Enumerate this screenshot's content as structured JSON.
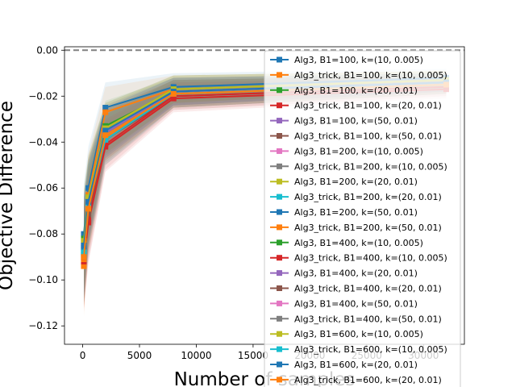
{
  "chart_data": {
    "type": "line",
    "title": "",
    "xlabel": "Number of samples",
    "ylabel": "Objective Difference",
    "xlim": [
      -1600,
      33600
    ],
    "ylim": [
      -0.128,
      0.0015
    ],
    "x_ticks": [
      0,
      5000,
      10000,
      15000,
      20000,
      25000,
      30000
    ],
    "x_tick_labels": [
      "0",
      "5000",
      "10000",
      "15000",
      "20000",
      "25000",
      "30000"
    ],
    "y_ticks": [
      0.0,
      -0.02,
      -0.04,
      -0.06,
      -0.08,
      -0.1,
      -0.12
    ],
    "y_tick_labels": [
      "0.00",
      "−0.02",
      "−0.04",
      "−0.06",
      "−0.08",
      "−0.10",
      "−0.12"
    ],
    "reference_line": {
      "y": 0.0,
      "style": "dashed",
      "color": "#808080"
    },
    "legend_position": "right",
    "grid": false,
    "x": [
      100,
      500,
      2000,
      8000,
      32000
    ],
    "series": [
      {
        "name": "Alg3, B1=100, k=(10, 0.005)",
        "color": "#1f77b4",
        "values": [
          -0.08,
          -0.06,
          -0.025,
          -0.016,
          -0.012
        ]
      },
      {
        "name": "Alg3_trick, B1=100, k=(10, 0.005)",
        "color": "#ff7f0e",
        "values": [
          -0.094,
          -0.063,
          -0.027,
          -0.017,
          -0.013
        ]
      },
      {
        "name": "Alg3, B1=100, k=(20, 0.01)",
        "color": "#2ca02c",
        "values": [
          -0.086,
          -0.066,
          -0.033,
          -0.018,
          -0.014
        ]
      },
      {
        "name": "Alg3_trick, B1=100, k=(20, 0.01)",
        "color": "#d62728",
        "values": [
          -0.092,
          -0.075,
          -0.042,
          -0.021,
          -0.017
        ]
      },
      {
        "name": "Alg3, B1=100, k=(50, 0.01)",
        "color": "#9467bd",
        "values": [
          -0.087,
          -0.068,
          -0.037,
          -0.019,
          -0.015
        ]
      },
      {
        "name": "Alg3_trick, B1=100, k=(50, 0.01)",
        "color": "#8c564b",
        "values": [
          -0.09,
          -0.072,
          -0.039,
          -0.02,
          -0.016
        ]
      },
      {
        "name": "Alg3, B1=200, k=(10, 0.005)",
        "color": "#e377c2",
        "values": [
          -0.084,
          -0.064,
          -0.034,
          -0.017,
          -0.013
        ]
      },
      {
        "name": "Alg3_trick, B1=200, k=(10, 0.005)",
        "color": "#7f7f7f",
        "values": [
          -0.088,
          -0.066,
          -0.036,
          -0.018,
          -0.014
        ]
      },
      {
        "name": "Alg3, B1=200, k=(20, 0.01)",
        "color": "#bcbd22",
        "values": [
          -0.083,
          -0.065,
          -0.035,
          -0.017,
          -0.013
        ]
      },
      {
        "name": "Alg3_trick, B1=200, k=(20, 0.01)",
        "color": "#17becf",
        "values": [
          -0.089,
          -0.069,
          -0.038,
          -0.019,
          -0.015
        ]
      },
      {
        "name": "Alg3, B1=200, k=(50, 0.01)",
        "color": "#1f77b4",
        "values": [
          -0.086,
          -0.067,
          -0.036,
          -0.018,
          -0.014
        ]
      },
      {
        "name": "Alg3_trick, B1=200, k=(50, 0.01)",
        "color": "#ff7f0e",
        "values": [
          -0.091,
          -0.07,
          -0.038,
          -0.019,
          -0.015
        ]
      },
      {
        "name": "Alg3, B1=400, k=(10, 0.005)",
        "color": "#2ca02c",
        "values": [
          -0.082,
          -0.064,
          -0.034,
          -0.017,
          -0.013
        ]
      },
      {
        "name": "Alg3_trick, B1=400, k=(10, 0.005)",
        "color": "#d62728",
        "values": [
          -0.09,
          -0.074,
          -0.041,
          -0.02,
          -0.016
        ]
      },
      {
        "name": "Alg3, B1=400, k=(20, 0.01)",
        "color": "#9467bd",
        "values": [
          -0.085,
          -0.066,
          -0.036,
          -0.018,
          -0.014
        ]
      },
      {
        "name": "Alg3_trick, B1=400, k=(20, 0.01)",
        "color": "#8c564b",
        "values": [
          -0.089,
          -0.071,
          -0.039,
          -0.019,
          -0.015
        ]
      },
      {
        "name": "Alg3, B1=400, k=(50, 0.01)",
        "color": "#e377c2",
        "values": [
          -0.084,
          -0.065,
          -0.035,
          -0.018,
          -0.014
        ]
      },
      {
        "name": "Alg3_trick, B1=400, k=(50, 0.01)",
        "color": "#7f7f7f",
        "values": [
          -0.088,
          -0.068,
          -0.037,
          -0.019,
          -0.015
        ]
      },
      {
        "name": "Alg3, B1=600, k=(10, 0.005)",
        "color": "#bcbd22",
        "values": [
          -0.083,
          -0.064,
          -0.034,
          -0.017,
          -0.013
        ]
      },
      {
        "name": "Alg3_trick, B1=600, k=(10, 0.005)",
        "color": "#17becf",
        "values": [
          -0.088,
          -0.068,
          -0.039,
          -0.019,
          -0.015
        ]
      },
      {
        "name": "Alg3, B1=600, k=(20, 0.01)",
        "color": "#1f77b4",
        "values": [
          -0.085,
          -0.066,
          -0.035,
          -0.018,
          -0.014
        ]
      },
      {
        "name": "Alg3_trick, B1=600, k=(20, 0.01)",
        "color": "#ff7f0e",
        "values": [
          -0.09,
          -0.069,
          -0.037,
          -0.019,
          -0.015
        ]
      }
    ]
  }
}
